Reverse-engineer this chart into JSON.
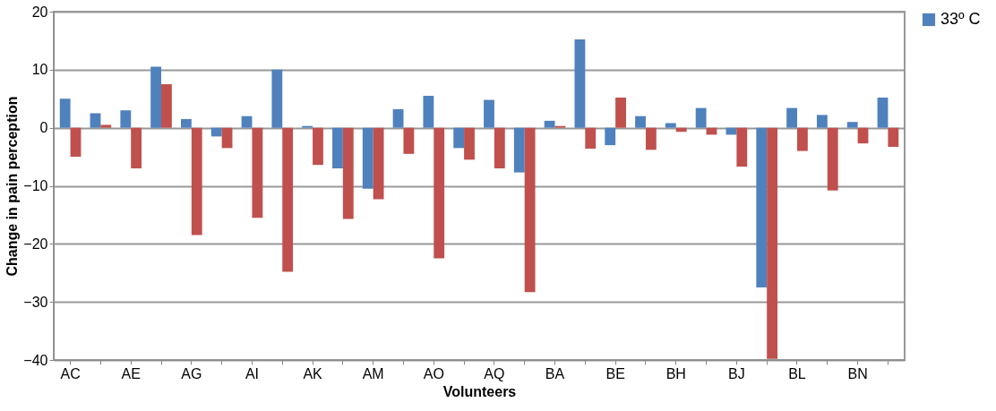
{
  "chart_data": {
    "type": "bar",
    "xlabel": "Volunteers",
    "ylabel": "Change in pain perception",
    "categories": [
      "AC",
      null,
      "AE",
      null,
      "AG",
      null,
      "AI",
      null,
      "AK",
      null,
      "AM",
      null,
      "AO",
      null,
      "AQ",
      null,
      "BA",
      null,
      "BE",
      null,
      "BH",
      null,
      "BJ",
      null,
      "BL",
      null,
      "BN",
      null
    ],
    "series": [
      {
        "name": "33º C",
        "color": "#4f81bd",
        "values": [
          5,
          2.5,
          3,
          10.5,
          1.5,
          -1.5,
          2,
          10,
          0.3,
          -7,
          -10.5,
          3.2,
          5.5,
          -3.5,
          4.8,
          -7.7,
          1.2,
          15.2,
          -3,
          2,
          0.8,
          3.4,
          -1.2,
          -27.5,
          3.4,
          2.2,
          1,
          5.2
        ]
      },
      {
        "color": "#c0504d",
        "values": [
          -5,
          0.5,
          -7,
          7.5,
          -18.5,
          -3.5,
          -15.5,
          -24.8,
          -6.4,
          -15.7,
          -12.3,
          -4.5,
          -22.5,
          -5.5,
          -7,
          -28.3,
          0.3,
          -3.6,
          5.2,
          -3.8,
          -0.7,
          -1.2,
          -6.7,
          -39.8,
          -4,
          -10.8,
          -2.7,
          -3.3
        ]
      }
    ],
    "ylim": [
      -40,
      20
    ],
    "yticks": [
      -40,
      -30,
      -20,
      -10,
      0,
      10,
      20
    ],
    "grid": "y",
    "legend": "right"
  }
}
